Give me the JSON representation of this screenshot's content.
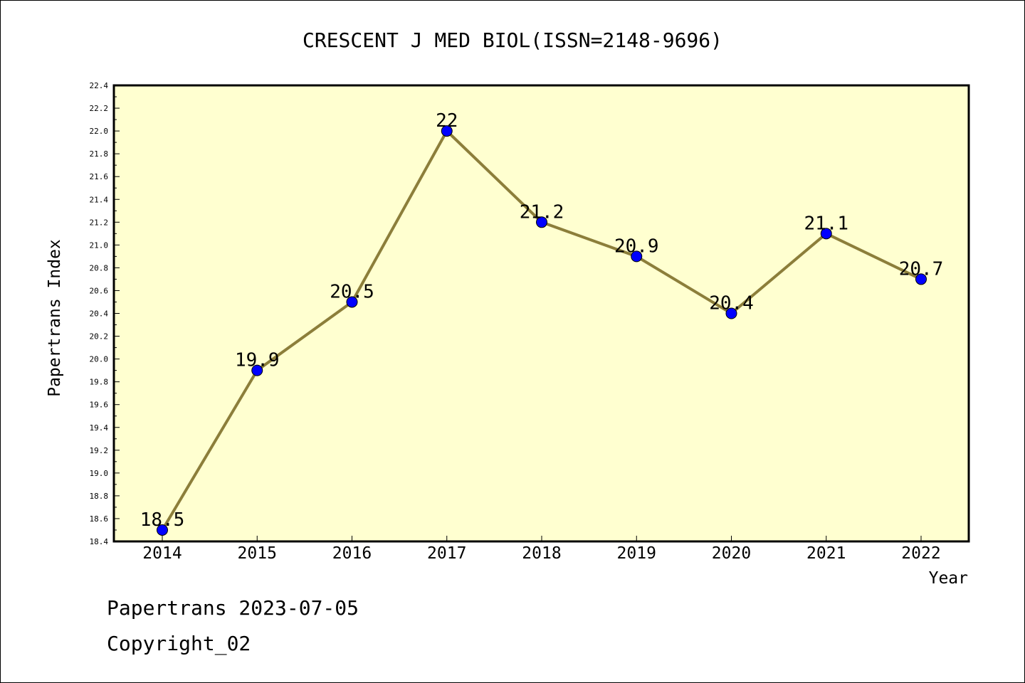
{
  "chart_data": {
    "type": "line",
    "title": "CRESCENT J MED BIOL(ISSN=2148-9696)",
    "xlabel": "Year",
    "ylabel": "Papertrans Index",
    "x": [
      "2014",
      "2015",
      "2016",
      "2017",
      "2018",
      "2019",
      "2020",
      "2021",
      "2022"
    ],
    "values": [
      18.5,
      19.9,
      20.5,
      22,
      21.2,
      20.9,
      20.4,
      21.1,
      20.7
    ],
    "data_labels": [
      "18.5",
      "19.9",
      "20.5",
      "22",
      "21.2",
      "20.9",
      "20.4",
      "21.1",
      "20.7"
    ],
    "ylim": [
      18.4,
      22.4
    ],
    "yticks": [
      "18.4",
      "18.6",
      "18.8",
      "19.0",
      "19.2",
      "19.4",
      "19.6",
      "19.8",
      "20.0",
      "20.2",
      "20.4",
      "20.6",
      "20.8",
      "21.0",
      "21.2",
      "21.4",
      "21.6",
      "21.8",
      "22.0",
      "22.2",
      "22.4"
    ],
    "grid": false,
    "line_color": "#8c7e3a",
    "marker_color": "#0000ff",
    "plot_background": "#ffffd0"
  },
  "footer": {
    "line1": "Papertrans 2023-07-05",
    "line2": "Copyright_02"
  }
}
